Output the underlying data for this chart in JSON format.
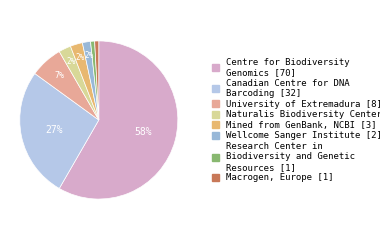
{
  "labels": [
    "Centre for Biodiversity\nGenomics [70]",
    "Canadian Centre for DNA\nBarcoding [32]",
    "University of Extremadura [8]",
    "Naturalis Biodiversity Center [3]",
    "Mined from GenBank, NCBI [3]",
    "Wellcome Sanger Institute [2]",
    "Research Center in\nBiodiversity and Genetic\nResources [1]",
    "Macrogen, Europe [1]"
  ],
  "values": [
    70,
    32,
    8,
    3,
    3,
    2,
    1,
    1
  ],
  "colors": [
    "#d8aacb",
    "#b5c8e8",
    "#e8a898",
    "#d8d898",
    "#e8b870",
    "#98b8d8",
    "#88b870",
    "#c87858"
  ],
  "pct_colors": "white",
  "pie_font_size": 7,
  "legend_font_size": 6.5
}
